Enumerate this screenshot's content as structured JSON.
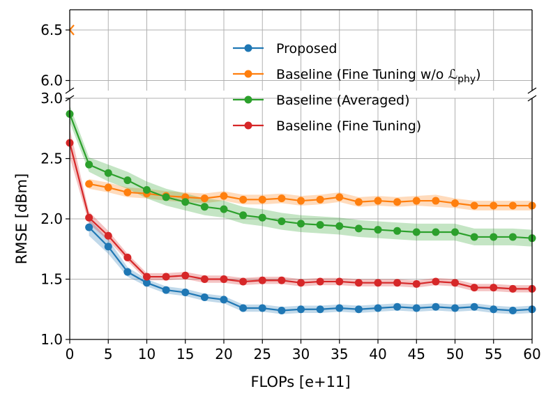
{
  "chart_data": {
    "type": "line",
    "title": "",
    "xlabel": "FLOPs [e+11]",
    "ylabel": "RMSE [dBm]",
    "xlim": [
      0,
      60
    ],
    "ylim_lower": [
      1.0,
      3.0
    ],
    "ylim_upper": [
      5.9,
      6.7
    ],
    "axis_break": true,
    "grid": true,
    "legend_position": "top-center",
    "x_ticks": [
      "0",
      "5",
      "10",
      "15",
      "20",
      "25",
      "30",
      "35",
      "40",
      "45",
      "50",
      "55",
      "60"
    ],
    "y_ticks_lower": [
      "1.0",
      "1.5",
      "2.0",
      "2.5",
      "3.0"
    ],
    "y_ticks_upper": [
      "6.0",
      "6.5"
    ],
    "colors": {
      "proposed": "#1f77b4",
      "fine_tuning_wo_phy": "#ff7f0e",
      "averaged": "#2ca02c",
      "fine_tuning": "#d62728"
    },
    "series": [
      {
        "name": "Proposed",
        "key": "proposed",
        "x": [
          2.5,
          5,
          7.5,
          10,
          12.5,
          15,
          17.5,
          20,
          22.5,
          25,
          27.5,
          30,
          32.5,
          35,
          37.5,
          40,
          42.5,
          45,
          47.5,
          50,
          52.5,
          55,
          57.5,
          60
        ],
        "values": [
          1.93,
          1.77,
          1.56,
          1.47,
          1.41,
          1.39,
          1.35,
          1.33,
          1.26,
          1.26,
          1.24,
          1.25,
          1.25,
          1.26,
          1.25,
          1.26,
          1.27,
          1.26,
          1.27,
          1.26,
          1.27,
          1.25,
          1.24,
          1.25
        ],
        "band": [
          0.07,
          0.06,
          0.04,
          0.03,
          0.03,
          0.03,
          0.03,
          0.03,
          0.03,
          0.03,
          0.03,
          0.03,
          0.03,
          0.03,
          0.03,
          0.03,
          0.03,
          0.03,
          0.03,
          0.03,
          0.03,
          0.03,
          0.03,
          0.03
        ]
      },
      {
        "name": "Baseline (Fine Tuning w/o ",
        "name_sym": "ℒ",
        "name_sub": "phy",
        "name_end": ")",
        "key": "fine_tuning_wo_phy",
        "x": [
          2.5,
          5,
          7.5,
          10,
          12.5,
          15,
          17.5,
          20,
          22.5,
          25,
          27.5,
          30,
          32.5,
          35,
          37.5,
          40,
          42.5,
          45,
          47.5,
          50,
          52.5,
          55,
          57.5,
          60
        ],
        "values": [
          2.29,
          2.26,
          2.22,
          2.21,
          2.19,
          2.18,
          2.17,
          2.19,
          2.16,
          2.16,
          2.17,
          2.15,
          2.16,
          2.18,
          2.14,
          2.15,
          2.14,
          2.15,
          2.15,
          2.13,
          2.11,
          2.11,
          2.11,
          2.11
        ],
        "band": [
          0.04,
          0.04,
          0.04,
          0.04,
          0.04,
          0.04,
          0.04,
          0.04,
          0.04,
          0.04,
          0.04,
          0.04,
          0.04,
          0.04,
          0.04,
          0.04,
          0.04,
          0.04,
          0.05,
          0.04,
          0.04,
          0.04,
          0.04,
          0.04
        ]
      },
      {
        "name": "Baseline (Averaged)",
        "key": "averaged",
        "x": [
          0,
          2.5,
          5,
          7.5,
          10,
          12.5,
          15,
          17.5,
          20,
          22.5,
          25,
          27.5,
          30,
          32.5,
          35,
          37.5,
          40,
          42.5,
          45,
          47.5,
          50,
          52.5,
          55,
          57.5,
          60
        ],
        "values": [
          2.87,
          2.45,
          2.38,
          2.32,
          2.24,
          2.18,
          2.14,
          2.1,
          2.08,
          2.03,
          2.01,
          1.98,
          1.96,
          1.95,
          1.94,
          1.92,
          1.91,
          1.9,
          1.89,
          1.89,
          1.89,
          1.85,
          1.85,
          1.85,
          1.84
        ],
        "band": [
          0.07,
          0.06,
          0.07,
          0.07,
          0.07,
          0.07,
          0.07,
          0.07,
          0.07,
          0.07,
          0.07,
          0.07,
          0.07,
          0.07,
          0.07,
          0.07,
          0.07,
          0.07,
          0.07,
          0.07,
          0.07,
          0.07,
          0.07,
          0.07,
          0.07
        ]
      },
      {
        "name": "Baseline (Fine Tuning)",
        "key": "fine_tuning",
        "x": [
          0,
          2.5,
          5,
          7.5,
          10,
          12.5,
          15,
          17.5,
          20,
          22.5,
          25,
          27.5,
          30,
          32.5,
          35,
          37.5,
          40,
          42.5,
          45,
          47.5,
          50,
          52.5,
          55,
          57.5,
          60
        ],
        "values": [
          2.63,
          2.01,
          1.86,
          1.68,
          1.52,
          1.52,
          1.53,
          1.5,
          1.5,
          1.48,
          1.49,
          1.49,
          1.47,
          1.48,
          1.48,
          1.47,
          1.47,
          1.47,
          1.46,
          1.48,
          1.47,
          1.43,
          1.43,
          1.42,
          1.42
        ],
        "band": [
          0.12,
          0.05,
          0.04,
          0.03,
          0.03,
          0.03,
          0.03,
          0.03,
          0.03,
          0.03,
          0.03,
          0.03,
          0.03,
          0.03,
          0.03,
          0.03,
          0.03,
          0.03,
          0.03,
          0.03,
          0.03,
          0.03,
          0.03,
          0.03,
          0.03
        ]
      }
    ],
    "upper_markers": [
      {
        "series": "fine_tuning_wo_phy",
        "x": 0,
        "y": 6.5,
        "marker": "left-chevron"
      }
    ]
  }
}
